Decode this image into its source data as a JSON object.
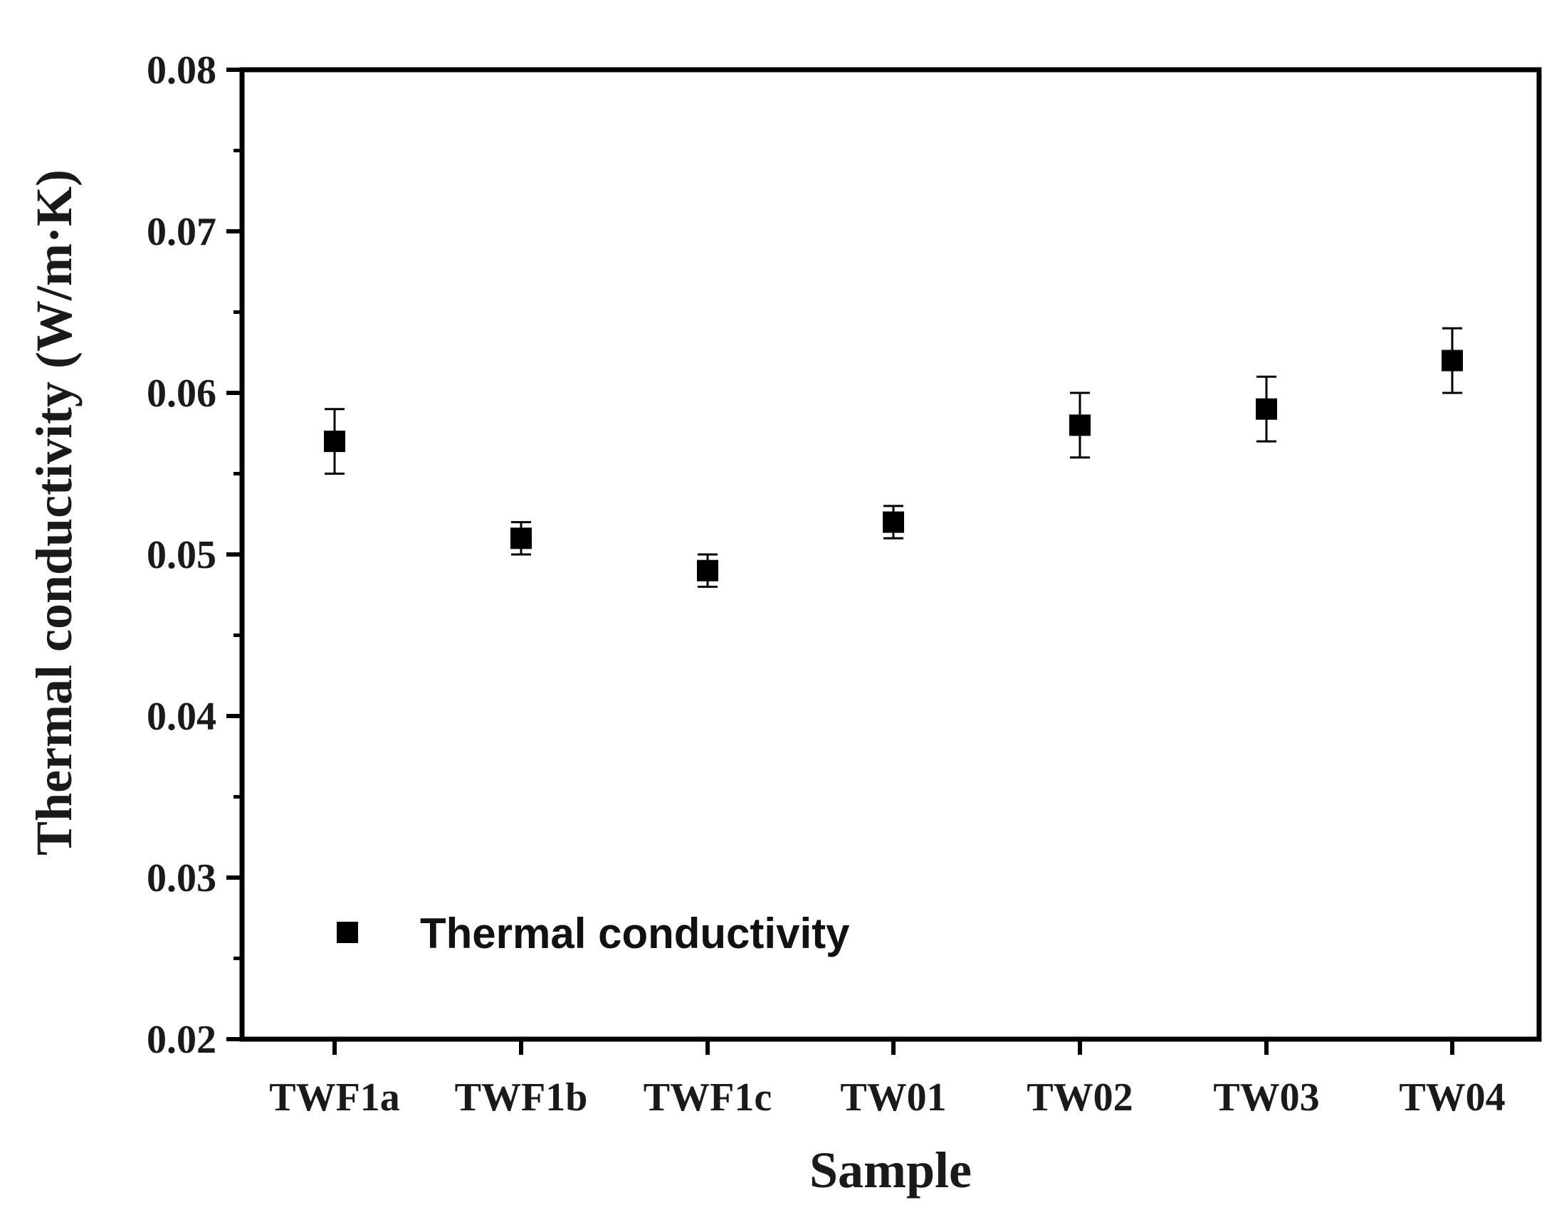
{
  "chart_data": {
    "type": "scatter",
    "title": "",
    "xlabel": "Sample",
    "ylabel": "Thermal conductivity (W/m·K)",
    "categories": [
      "TWF1a",
      "TWF1b",
      "TWF1c",
      "TW01",
      "TW02",
      "TW03",
      "TW04"
    ],
    "series": [
      {
        "name": "Thermal conductivity",
        "values": [
          0.057,
          0.051,
          0.049,
          0.052,
          0.058,
          0.059,
          0.062
        ],
        "errors": [
          0.002,
          0.001,
          0.001,
          0.001,
          0.002,
          0.002,
          0.002
        ],
        "marker": "square",
        "color": "#000000"
      }
    ],
    "ylim": [
      0.02,
      0.08
    ],
    "yticks": [
      "0.02",
      "0.03",
      "0.04",
      "0.05",
      "0.06",
      "0.07",
      "0.08"
    ],
    "ytick_values": [
      0.02,
      0.03,
      0.04,
      0.05,
      0.06,
      0.07,
      0.08
    ],
    "grid": false,
    "legend_position": "bottom-left"
  }
}
